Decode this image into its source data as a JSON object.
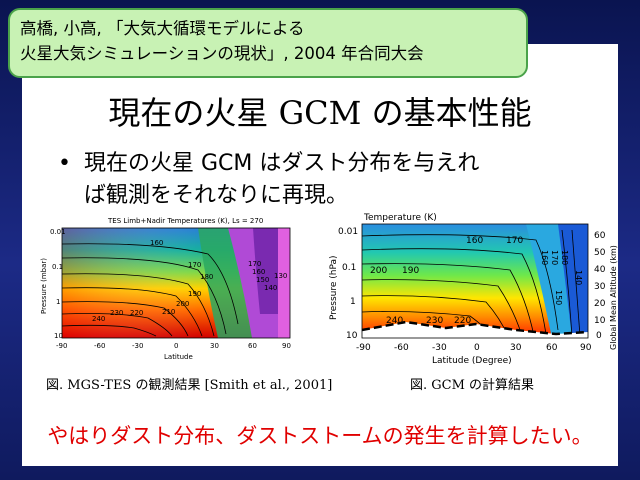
{
  "citation": {
    "line1": "高橋, 小高, 「大気大循環モデルによる",
    "line2": "火星大気シミュレーションの現状」, 2004 年合同大会"
  },
  "title": "現在の火星 GCM の基本性能",
  "bullet": {
    "marker": "•",
    "line1": "現在の火星 GCM はダスト分布を与えれ",
    "line2": "ば観測をそれなりに再現。"
  },
  "figure_left": {
    "plot_title": "TES Limb+Nadir Temperatures (K), Ls = 270",
    "ylabel": "Pressure (mbar)",
    "xlabel": "Latitude",
    "y_ticks": [
      "0.01",
      "0.1",
      "1",
      "10"
    ],
    "x_ticks": [
      "-90",
      "-60",
      "-30",
      "0",
      "30",
      "60",
      "90"
    ],
    "contour_labels": [
      "160",
      "170",
      "180",
      "190",
      "200",
      "210",
      "220",
      "230",
      "240",
      "170",
      "160",
      "150",
      "140",
      "130"
    ],
    "caption": "図. MGS-TES の観測結果 [Smith et al., 2001]"
  },
  "figure_right": {
    "plot_title": "Temperature (K)",
    "ylabel": "Pressure (hPa)",
    "y2label": "Global Mean Altitude (km)",
    "xlabel": "Latitude (Degree)",
    "y_ticks": [
      "0.01",
      "0.1",
      "1",
      "10"
    ],
    "y2_ticks": [
      "60",
      "50",
      "40",
      "30",
      "20",
      "10",
      "0"
    ],
    "x_ticks": [
      "-90",
      "-60",
      "-30",
      "0",
      "30",
      "60",
      "90"
    ],
    "contour_labels": [
      "160",
      "170",
      "190",
      "200",
      "240",
      "230",
      "220",
      "150",
      "160",
      "170",
      "180",
      "140"
    ],
    "caption": "図. GCM の計算結果"
  },
  "conclusion": "やはりダスト分布、ダストストームの発生を計算したい。"
}
